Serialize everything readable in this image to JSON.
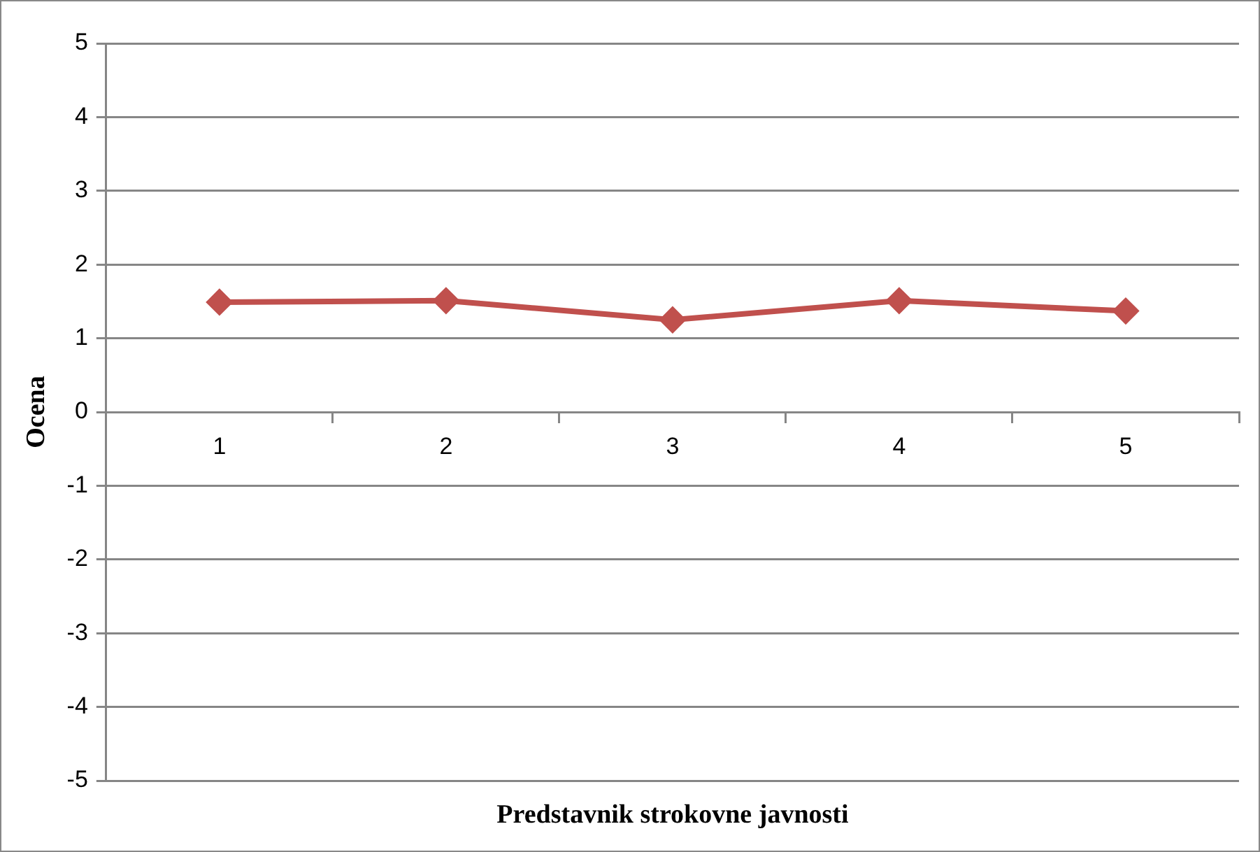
{
  "chart_data": {
    "type": "line",
    "xlabel": "Predstavnik strokovne javnosti",
    "ylabel": "Ocena",
    "categories": [
      "1",
      "2",
      "3",
      "4",
      "5"
    ],
    "series": [
      {
        "color": "#c0504d",
        "values": [
          1.49,
          1.51,
          1.25,
          1.51,
          1.37
        ]
      }
    ],
    "ylim": [
      -5,
      5
    ],
    "yticks": [
      -5,
      -4,
      -3,
      -2,
      -1,
      0,
      1,
      2,
      3,
      4,
      5
    ],
    "grid": "y",
    "legend": false,
    "marker": "diamond",
    "line_style": "solid"
  }
}
